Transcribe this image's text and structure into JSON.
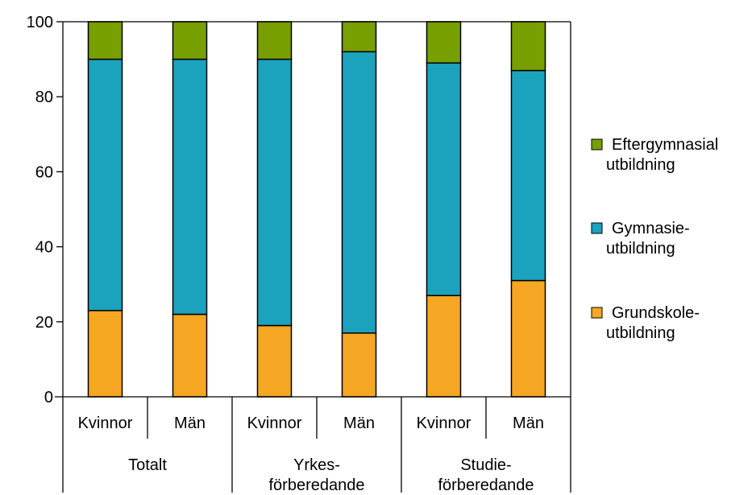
{
  "chart_data": {
    "type": "bar",
    "stacked": true,
    "ylim": [
      0,
      100
    ],
    "yticks": [
      0,
      20,
      40,
      60,
      80,
      100
    ],
    "categories": [
      "Kvinnor",
      "Män",
      "Kvinnor",
      "Män",
      "Kvinnor",
      "Män"
    ],
    "groups": [
      {
        "label_lines": [
          "Totalt"
        ],
        "span": 2
      },
      {
        "label_lines": [
          "Yrkes-",
          "förberedande"
        ],
        "span": 2
      },
      {
        "label_lines": [
          "Studie-",
          "förberedande"
        ],
        "span": 2
      }
    ],
    "series": [
      {
        "name_lines": [
          "Grundskole-",
          "utbildning"
        ],
        "color": "#F5A623",
        "values": [
          23,
          22,
          19,
          17,
          27,
          31
        ]
      },
      {
        "name_lines": [
          "Gymnasie-",
          "utbildning"
        ],
        "color": "#1BA2BD",
        "values": [
          67,
          68,
          71,
          75,
          62,
          56
        ]
      },
      {
        "name_lines": [
          "Eftergymnasial",
          "utbildning"
        ],
        "color": "#779F00",
        "values": [
          10,
          10,
          10,
          8,
          11,
          13
        ]
      }
    ],
    "legend_order": [
      2,
      1,
      0
    ],
    "legend_position": "right",
    "grid": false
  }
}
